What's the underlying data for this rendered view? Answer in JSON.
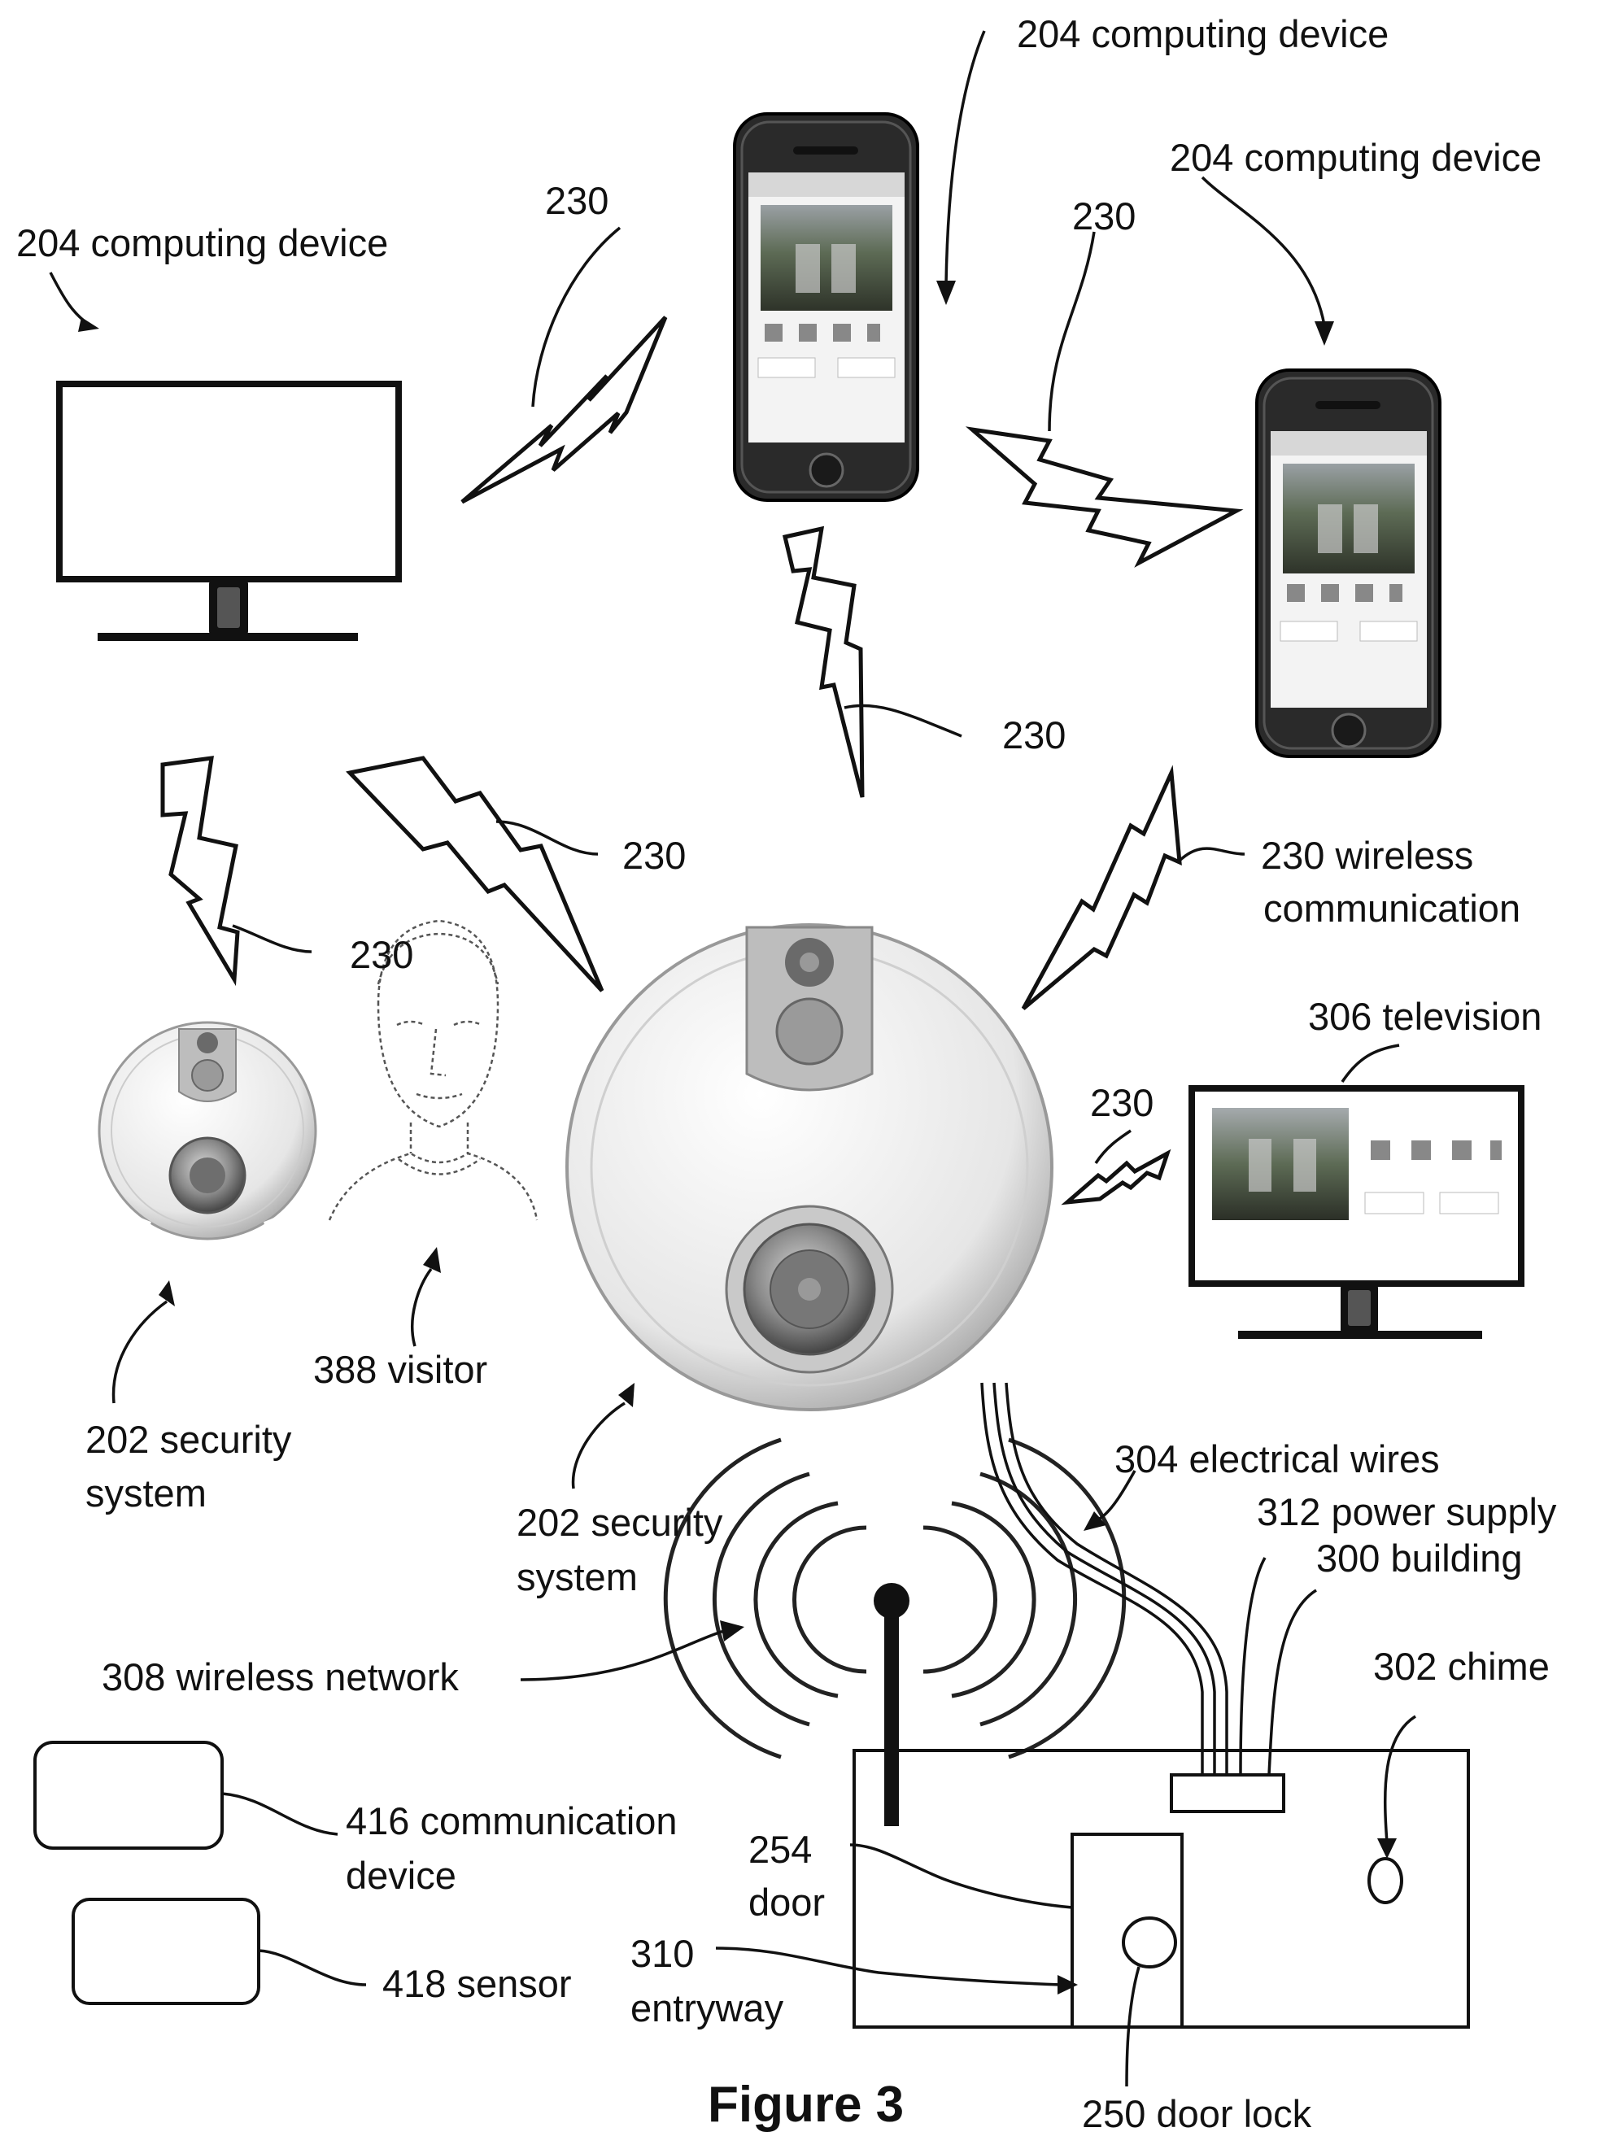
{
  "figure": {
    "title": "Figure 3",
    "labels": {
      "computing_device_top": "204 computing device",
      "computing_device_right": "204 computing device",
      "computing_device_left": "204 computing device",
      "wireless_1": "230",
      "wireless_2": "230",
      "wireless_3": "230",
      "wireless_4": "230",
      "wireless_5": "230",
      "wireless_comm_line1": "230 wireless",
      "wireless_comm_line2": "communication",
      "wireless_tv": "230",
      "television": "306 television",
      "security_small_line1": "202 security",
      "security_small_line2": "system",
      "visitor": "388 visitor",
      "security_main_line1": "202 security",
      "security_main_line2": "system",
      "electrical_wires": "304 electrical wires",
      "power_supply": "312 power supply",
      "building": "300 building",
      "wireless_network": "308 wireless network",
      "chime": "302 chime",
      "comm_device_line1": "416 communication",
      "comm_device_line2": "device",
      "door_num": "254",
      "door_word": "door",
      "entryway_num": "310",
      "entryway_word": "entryway",
      "sensor": "418 sensor",
      "door_lock": "250 door lock"
    }
  },
  "colors": {
    "ink": "#111111",
    "phone_body": "#2a2a2a",
    "screen_bg": "#f3f3f3",
    "device_shell": "#e6e6e6",
    "camera_gray": "#8f8f8f",
    "photo_green": "#5d6b55"
  }
}
